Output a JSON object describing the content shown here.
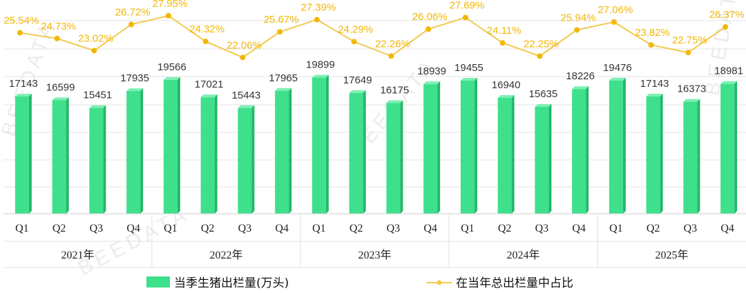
{
  "chart_data": {
    "type": "bar",
    "categories": [
      "Q1",
      "Q2",
      "Q3",
      "Q4",
      "Q1",
      "Q2",
      "Q3",
      "Q4",
      "Q1",
      "Q2",
      "Q3",
      "Q4",
      "Q1",
      "Q2",
      "Q3",
      "Q4",
      "Q1",
      "Q2",
      "Q3",
      "Q4"
    ],
    "groups": [
      "2021年",
      "2022年",
      "2023年",
      "2024年",
      "2025年"
    ],
    "series": [
      {
        "name": "当季生猪出栏量(万头)",
        "type": "bar",
        "color": "#3EE08C",
        "values": [
          17143,
          16599,
          15451,
          17935,
          19566,
          17021,
          15443,
          17965,
          19899,
          17649,
          16175,
          18939,
          19455,
          16940,
          15635,
          18226,
          19476,
          17143,
          16373,
          18981
        ]
      },
      {
        "name": "在当年总出栏量中占比",
        "type": "line",
        "color": "#F2C94C",
        "values": [
          25.54,
          24.73,
          23.02,
          26.72,
          27.95,
          24.32,
          22.06,
          25.67,
          27.39,
          24.29,
          22.26,
          26.06,
          27.69,
          24.11,
          22.25,
          25.94,
          27.06,
          23.82,
          22.75,
          26.37
        ],
        "labels": [
          "25.54%",
          "24.73%",
          "23.02%",
          "26.72%",
          "27.95%",
          "24.32%",
          "22.06%",
          "25.67%",
          "27.39%",
          "24.29%",
          "22.26%",
          "26.06%",
          "27.69%",
          "24.11%",
          "22.25%",
          "25.94%",
          "27.06%",
          "23.82%",
          "22.75%",
          "26.37%"
        ]
      }
    ],
    "ylim": [
      0,
      25000
    ],
    "ylim_line": [
      0,
      29
    ],
    "grid": true,
    "legend": "bottom",
    "watermark": "BEEDATA"
  }
}
